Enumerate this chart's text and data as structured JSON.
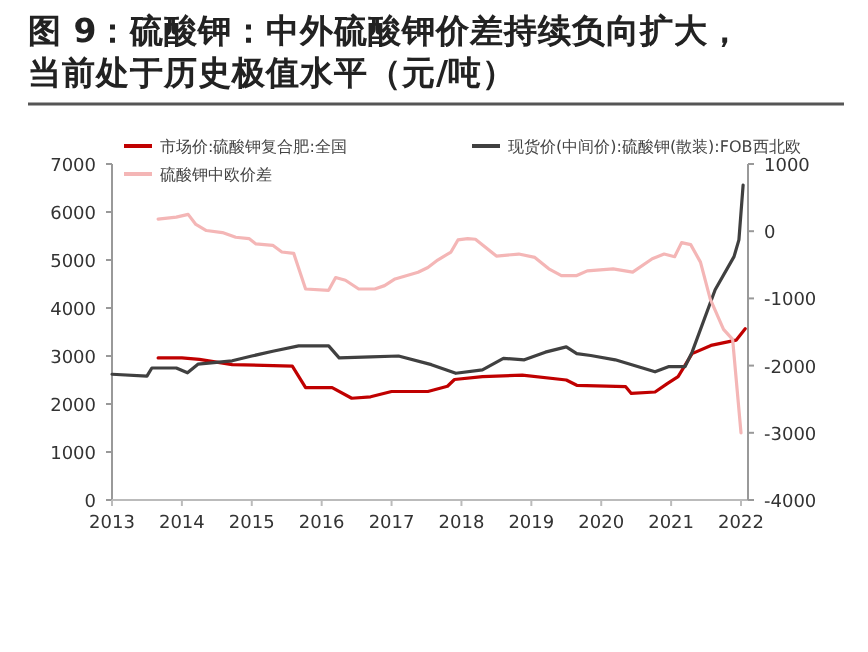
{
  "chart_data": {
    "type": "line",
    "title": "图 9：硫酸钾：中外硫酸钾价差持续负向扩大，当前处于历史极值水平（元/吨）",
    "xlim": [
      2013,
      2022.1
    ],
    "xticks": [
      2013,
      2014,
      2015,
      2016,
      2017,
      2018,
      2019,
      2020,
      2021,
      2022
    ],
    "ylim": [
      0,
      7000
    ],
    "yticks": [
      0,
      1000,
      2000,
      3000,
      4000,
      5000,
      6000,
      7000
    ],
    "y2lim": [
      -4000,
      1000
    ],
    "y2ticks": [
      -4000,
      -3000,
      -2000,
      -1000,
      0,
      1000
    ],
    "legend": "top",
    "grid": false,
    "series": [
      {
        "name": "市场价:硫酸钾复合肥:全国",
        "color": "#c00000",
        "x": [
          2013.66,
          2014.0,
          2014.25,
          2014.72,
          2015.58,
          2015.77,
          2016.15,
          2016.43,
          2016.7,
          2017.0,
          2017.52,
          2017.8,
          2017.9,
          2018.3,
          2018.87,
          2019.5,
          2019.65,
          2020.35,
          2020.43,
          2020.77,
          2020.95,
          2021.1,
          2021.3,
          2021.57,
          2021.93,
          2022.06
        ],
        "values": [
          2960,
          2960,
          2930,
          2820,
          2790,
          2340,
          2340,
          2120,
          2150,
          2260,
          2260,
          2370,
          2510,
          2570,
          2600,
          2500,
          2390,
          2360,
          2220,
          2250,
          2430,
          2570,
          3050,
          3220,
          3330,
          3570
        ]
      },
      {
        "name": "现货价(中间价):硫酸钾(散装):FOB西北欧",
        "color": "#404040",
        "x": [
          2013.0,
          2013.5,
          2013.57,
          2013.92,
          2014.08,
          2014.23,
          2014.72,
          2015.0,
          2015.3,
          2015.67,
          2016.1,
          2016.25,
          2016.7,
          2017.1,
          2017.57,
          2017.92,
          2018.3,
          2018.6,
          2018.9,
          2019.2,
          2019.5,
          2019.65,
          2019.85,
          2020.2,
          2020.77,
          2020.97,
          2021.2,
          2021.3,
          2021.63,
          2021.9,
          2021.97,
          2022.03
        ],
        "values": [
          2620,
          2580,
          2750,
          2750,
          2650,
          2830,
          2900,
          3000,
          3100,
          3210,
          3210,
          2960,
          2980,
          3000,
          2820,
          2640,
          2710,
          2950,
          2920,
          3080,
          3190,
          3050,
          3010,
          2920,
          2670,
          2780,
          2780,
          3080,
          4380,
          5070,
          5420,
          6560
        ]
      },
      {
        "name": "硫酸钾中欧价差",
        "color": "#f4b6b6",
        "axis": "y2",
        "x": [
          2013.66,
          2013.92,
          2014.09,
          2014.2,
          2014.35,
          2014.58,
          2014.77,
          2014.96,
          2015.06,
          2015.3,
          2015.43,
          2015.6,
          2015.77,
          2016.1,
          2016.2,
          2016.34,
          2016.53,
          2016.76,
          2016.9,
          2017.05,
          2017.38,
          2017.52,
          2017.66,
          2017.85,
          2017.95,
          2018.09,
          2018.2,
          2018.5,
          2018.82,
          2019.05,
          2019.25,
          2019.43,
          2019.65,
          2019.8,
          2020.17,
          2020.45,
          2020.73,
          2020.9,
          2021.05,
          2021.15,
          2021.28,
          2021.42,
          2021.56,
          2021.75,
          2021.88,
          2022.0
        ],
        "values": [
          180,
          210,
          250,
          100,
          10,
          -20,
          -90,
          -110,
          -190,
          -210,
          -310,
          -330,
          -860,
          -880,
          -690,
          -730,
          -860,
          -860,
          -810,
          -710,
          -610,
          -540,
          -430,
          -310,
          -130,
          -110,
          -120,
          -370,
          -340,
          -390,
          -560,
          -660,
          -660,
          -590,
          -560,
          -610,
          -410,
          -340,
          -380,
          -170,
          -200,
          -460,
          -1010,
          -1460,
          -1610,
          -3000
        ]
      }
    ]
  }
}
